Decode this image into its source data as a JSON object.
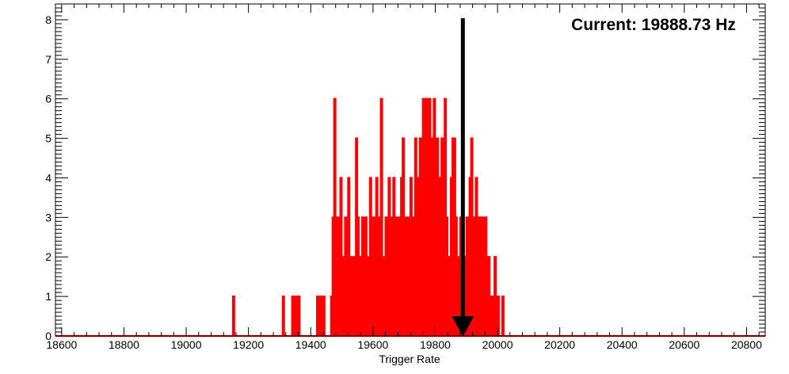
{
  "chart_data": {
    "type": "histogram",
    "title": "",
    "xlabel": "Trigger Rate",
    "ylabel": "",
    "xlim": [
      18580,
      20860
    ],
    "ylim": [
      0,
      8.4
    ],
    "xticks": [
      18600,
      18800,
      19000,
      19200,
      19400,
      19600,
      19800,
      20000,
      20200,
      20400,
      20600,
      20800
    ],
    "yticks": [
      0,
      1,
      2,
      3,
      4,
      5,
      6,
      7,
      8
    ],
    "line_color": "#ff0000",
    "bin_width": 4.5,
    "bins": [
      [
        19150,
        1
      ],
      [
        19310,
        1
      ],
      [
        19340,
        1
      ],
      [
        19350,
        1
      ],
      [
        19360,
        1
      ],
      [
        19420,
        1
      ],
      [
        19430,
        1
      ],
      [
        19440,
        1
      ],
      [
        19465,
        1
      ],
      [
        19470,
        3
      ],
      [
        19475,
        6
      ],
      [
        19480,
        2
      ],
      [
        19485,
        3
      ],
      [
        19490,
        2
      ],
      [
        19495,
        4
      ],
      [
        19500,
        2
      ],
      [
        19510,
        3
      ],
      [
        19520,
        4
      ],
      [
        19525,
        2
      ],
      [
        19530,
        1
      ],
      [
        19535,
        2
      ],
      [
        19540,
        1
      ],
      [
        19545,
        5
      ],
      [
        19550,
        3
      ],
      [
        19555,
        1
      ],
      [
        19560,
        2
      ],
      [
        19565,
        3
      ],
      [
        19570,
        1
      ],
      [
        19575,
        3
      ],
      [
        19580,
        2
      ],
      [
        19585,
        1
      ],
      [
        19590,
        4
      ],
      [
        19595,
        1
      ],
      [
        19600,
        3
      ],
      [
        19605,
        1
      ],
      [
        19610,
        4
      ],
      [
        19615,
        1
      ],
      [
        19620,
        3
      ],
      [
        19625,
        6
      ],
      [
        19630,
        2
      ],
      [
        19640,
        3
      ],
      [
        19645,
        1
      ],
      [
        19650,
        4
      ],
      [
        19655,
        3
      ],
      [
        19660,
        0
      ],
      [
        19665,
        4
      ],
      [
        19670,
        2
      ],
      [
        19675,
        3
      ],
      [
        19680,
        0
      ],
      [
        19685,
        3
      ],
      [
        19690,
        4
      ],
      [
        19695,
        5
      ],
      [
        19700,
        3
      ],
      [
        19710,
        3
      ],
      [
        19720,
        4
      ],
      [
        19730,
        3
      ],
      [
        19735,
        5
      ],
      [
        19740,
        3
      ],
      [
        19745,
        4
      ],
      [
        19750,
        5
      ],
      [
        19755,
        4
      ],
      [
        19760,
        6
      ],
      [
        19765,
        4
      ],
      [
        19770,
        6
      ],
      [
        19775,
        4
      ],
      [
        19780,
        6
      ],
      [
        19785,
        4
      ],
      [
        19790,
        5
      ],
      [
        19795,
        6
      ],
      [
        19800,
        2
      ],
      [
        19805,
        5
      ],
      [
        19810,
        3
      ],
      [
        19815,
        4
      ],
      [
        19820,
        5
      ],
      [
        19825,
        4
      ],
      [
        19830,
        6
      ],
      [
        19835,
        3
      ],
      [
        19840,
        1
      ],
      [
        19845,
        2
      ],
      [
        19850,
        4
      ],
      [
        19855,
        5
      ],
      [
        19860,
        5
      ],
      [
        19865,
        3
      ],
      [
        19870,
        1
      ],
      [
        19875,
        2
      ],
      [
        19880,
        3
      ],
      [
        19885,
        0
      ],
      [
        19890,
        1
      ],
      [
        19895,
        2
      ],
      [
        19900,
        3
      ],
      [
        19905,
        1
      ],
      [
        19910,
        4
      ],
      [
        19915,
        5
      ],
      [
        19920,
        3
      ],
      [
        19925,
        0
      ],
      [
        19930,
        4
      ],
      [
        19935,
        2
      ],
      [
        19940,
        3
      ],
      [
        19945,
        1
      ],
      [
        19950,
        3
      ],
      [
        19955,
        2
      ],
      [
        19960,
        3
      ],
      [
        19965,
        1
      ],
      [
        19970,
        2
      ],
      [
        19980,
        1
      ],
      [
        19990,
        2
      ],
      [
        20000,
        1
      ],
      [
        20010,
        0
      ],
      [
        20015,
        1
      ]
    ],
    "current_value": 19888.73,
    "current_label": "Current: 19888.73 Hz",
    "arrow_color": "#000000",
    "arrow_from_y": 8,
    "arrow_to_y": 0
  }
}
